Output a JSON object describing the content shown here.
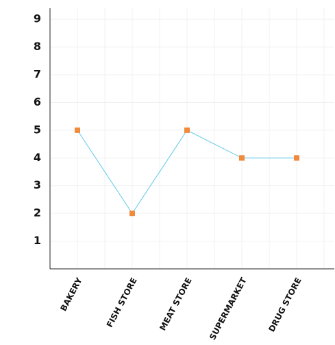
{
  "chart_data": {
    "type": "line",
    "categories": [
      "BAKERY",
      "FISH STORE",
      "MEAT STORE",
      "SUPERMARKET",
      "DRUG STORE"
    ],
    "values": [
      5,
      2,
      5,
      4,
      4
    ],
    "line_color": "#5ec9e8",
    "marker_color": "#f28a3c",
    "ylim": [
      0,
      9.4
    ],
    "yticks": [
      1,
      2,
      3,
      4,
      5,
      6,
      7,
      8,
      9
    ],
    "grid": true
  }
}
